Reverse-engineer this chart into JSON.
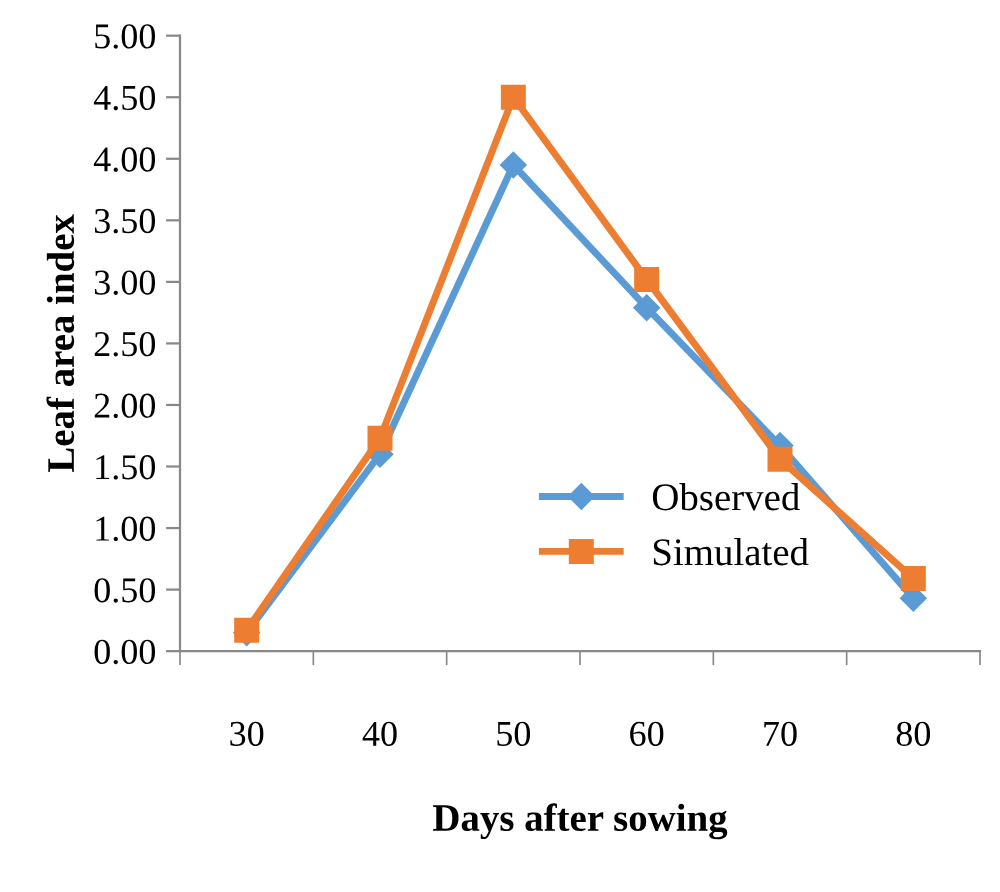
{
  "chart_data": {
    "type": "line",
    "xlabel": "Days after sowing",
    "ylabel": "Leaf area index",
    "categories": [
      "30",
      "40",
      "50",
      "60",
      "70",
      "80"
    ],
    "series": [
      {
        "name": "Observed",
        "color": "#5b9bd5",
        "marker": "diamond",
        "values": [
          0.15,
          1.6,
          3.95,
          2.79,
          1.67,
          0.43
        ]
      },
      {
        "name": "Simulated",
        "color": "#ed7d31",
        "marker": "square",
        "values": [
          0.17,
          1.73,
          4.5,
          3.02,
          1.56,
          0.59
        ]
      }
    ],
    "ylim": [
      0,
      5
    ],
    "yticks": [
      {
        "value": 0,
        "label": "0.00"
      },
      {
        "value": 0.5,
        "label": "0.50"
      },
      {
        "value": 1,
        "label": "1.00"
      },
      {
        "value": 1.5,
        "label": "1.50"
      },
      {
        "value": 2,
        "label": "2.00"
      },
      {
        "value": 2.5,
        "label": "2.50"
      },
      {
        "value": 3,
        "label": "3.00"
      },
      {
        "value": 3.5,
        "label": "3.50"
      },
      {
        "value": 4,
        "label": "4.00"
      },
      {
        "value": 4.5,
        "label": "4.50"
      },
      {
        "value": 5,
        "label": "5.00"
      }
    ],
    "grid": false,
    "legend": "center right",
    "line_style": "solid"
  }
}
